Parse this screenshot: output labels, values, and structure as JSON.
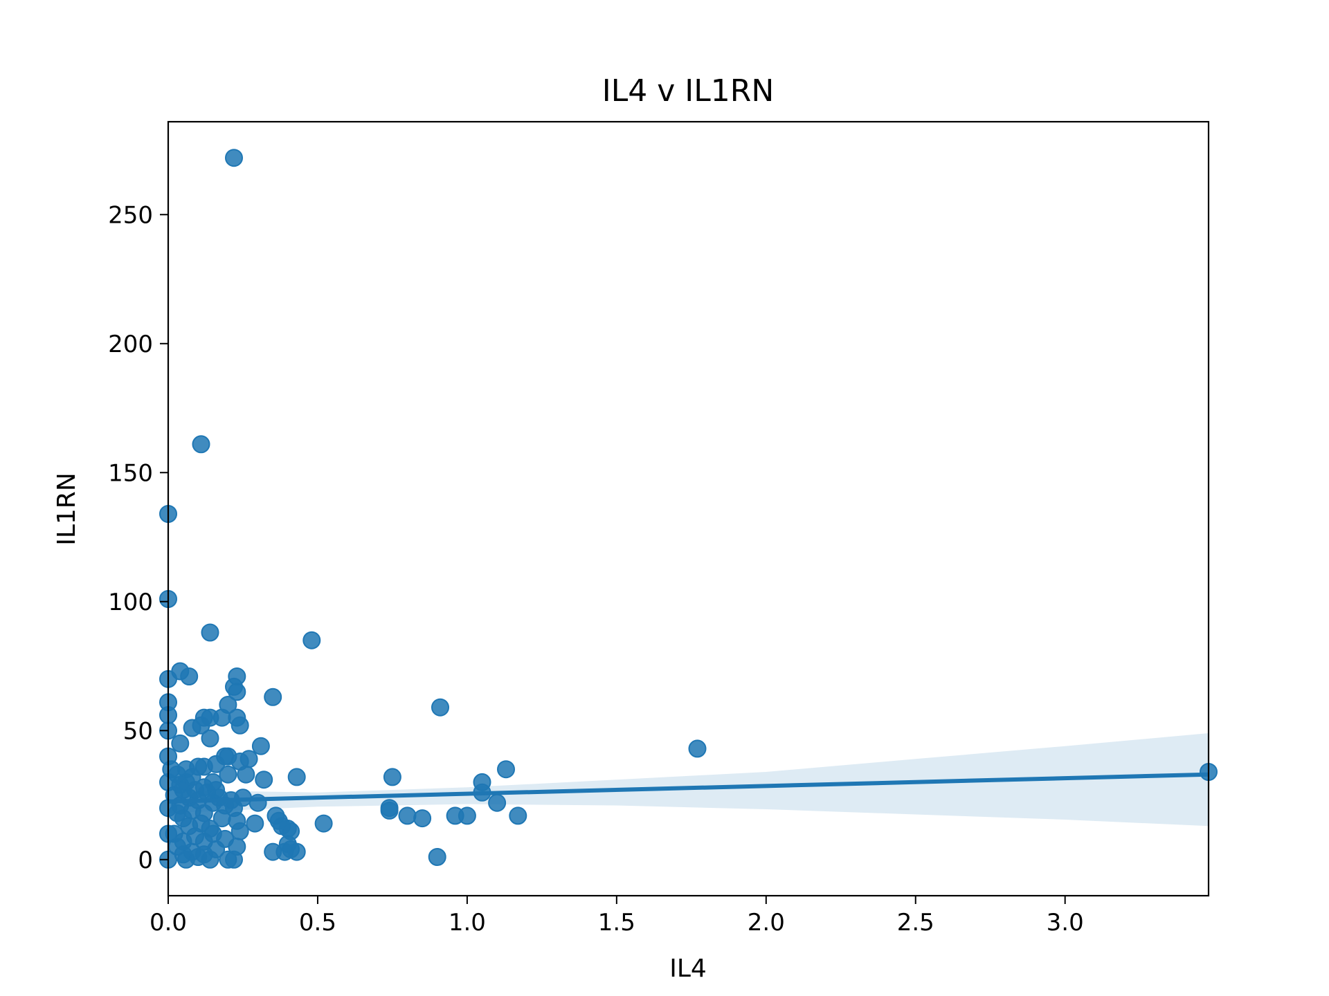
{
  "chart_data": {
    "type": "scatter",
    "title": "IL4 v IL1RN",
    "xlabel": "IL4",
    "ylabel": "IL1RN",
    "xlim": [
      0.0,
      3.48
    ],
    "ylim": [
      -14,
      286
    ],
    "xticks": [
      0.0,
      0.5,
      1.0,
      1.5,
      2.0,
      2.5,
      3.0
    ],
    "xtick_labels": [
      "0.0",
      "0.5",
      "1.0",
      "1.5",
      "2.0",
      "2.5",
      "3.0"
    ],
    "yticks": [
      0,
      50,
      100,
      150,
      200,
      250
    ],
    "ytick_labels": [
      "0",
      "50",
      "100",
      "150",
      "200",
      "250"
    ],
    "grid": false,
    "legend": "none",
    "colors": {
      "points": "#1f77b4",
      "regression_line": "#1f77b4",
      "confidence_band": "#1f77b4"
    },
    "series": [
      {
        "points": [
          [
            0.22,
            272
          ],
          [
            0.11,
            161
          ],
          [
            0.0,
            134
          ],
          [
            0.0,
            101
          ],
          [
            0.14,
            88
          ],
          [
            0.48,
            85
          ],
          [
            0.04,
            73
          ],
          [
            0.07,
            71
          ],
          [
            0.23,
            71
          ],
          [
            0.0,
            70
          ],
          [
            0.22,
            67
          ],
          [
            0.23,
            65
          ],
          [
            0.35,
            63
          ],
          [
            0.0,
            61
          ],
          [
            0.2,
            60
          ],
          [
            0.91,
            59
          ],
          [
            0.0,
            56
          ],
          [
            0.12,
            55
          ],
          [
            0.14,
            55
          ],
          [
            0.18,
            55
          ],
          [
            0.23,
            55
          ],
          [
            0.08,
            51
          ],
          [
            0.11,
            52
          ],
          [
            0.24,
            52
          ],
          [
            0.14,
            47
          ],
          [
            0.04,
            45
          ],
          [
            0.31,
            44
          ],
          [
            1.77,
            43
          ],
          [
            0.19,
            40
          ],
          [
            0.2,
            40
          ],
          [
            0.27,
            39
          ],
          [
            0.24,
            38
          ],
          [
            0.16,
            37
          ],
          [
            0.1,
            36
          ],
          [
            1.13,
            35
          ],
          [
            0.06,
            35
          ],
          [
            0.26,
            33
          ],
          [
            0.43,
            32
          ],
          [
            0.75,
            32
          ],
          [
            0.32,
            31
          ],
          [
            1.05,
            30
          ],
          [
            0.04,
            29
          ],
          [
            0.12,
            28
          ],
          [
            0.16,
            27
          ],
          [
            1.05,
            26
          ],
          [
            0.25,
            24
          ],
          [
            0.02,
            25
          ],
          [
            0.07,
            24
          ],
          [
            0.1,
            23
          ],
          [
            0.3,
            22
          ],
          [
            1.1,
            22
          ],
          [
            0.15,
            22
          ],
          [
            0.19,
            21
          ],
          [
            0.22,
            20
          ],
          [
            0.04,
            21
          ],
          [
            0.74,
            20
          ],
          [
            0.74,
            19
          ],
          [
            0.08,
            19
          ],
          [
            0.12,
            18
          ],
          [
            0.8,
            17
          ],
          [
            0.96,
            17
          ],
          [
            1.0,
            17
          ],
          [
            1.17,
            17
          ],
          [
            0.36,
            17
          ],
          [
            0.85,
            16
          ],
          [
            0.05,
            16
          ],
          [
            0.37,
            15
          ],
          [
            0.29,
            14
          ],
          [
            0.52,
            14
          ],
          [
            0.38,
            13
          ],
          [
            0.4,
            12
          ],
          [
            0.41,
            11
          ],
          [
            0.24,
            11
          ],
          [
            0.15,
            10
          ],
          [
            0.02,
            10
          ],
          [
            0.09,
            9
          ],
          [
            0.19,
            8
          ],
          [
            0.12,
            7
          ],
          [
            0.05,
            7
          ],
          [
            0.4,
            6
          ],
          [
            0.41,
            4
          ],
          [
            0.23,
            5
          ],
          [
            0.03,
            5
          ],
          [
            0.16,
            4
          ],
          [
            0.35,
            3
          ],
          [
            0.39,
            3
          ],
          [
            0.43,
            3
          ],
          [
            0.08,
            3
          ],
          [
            0.12,
            2
          ],
          [
            0.05,
            2
          ],
          [
            0.9,
            1
          ],
          [
            0.22,
            0
          ],
          [
            0.06,
            0
          ],
          [
            0.14,
            0
          ],
          [
            0.2,
            0
          ],
          [
            0.0,
            0
          ],
          [
            0.1,
            1
          ],
          [
            0.0,
            30
          ],
          [
            0.0,
            20
          ],
          [
            0.0,
            10
          ],
          [
            0.0,
            40
          ],
          [
            0.0,
            50
          ],
          [
            0.01,
            35
          ],
          [
            0.03,
            33
          ],
          [
            0.06,
            30
          ],
          [
            0.09,
            27
          ],
          [
            0.13,
            26
          ],
          [
            0.17,
            24
          ],
          [
            0.21,
            23
          ],
          [
            0.11,
            14
          ],
          [
            0.07,
            13
          ],
          [
            0.14,
            12
          ],
          [
            0.18,
            16
          ],
          [
            0.23,
            15
          ],
          [
            0.03,
            18
          ],
          [
            0.05,
            27
          ],
          [
            0.15,
            30
          ],
          [
            0.2,
            33
          ],
          [
            0.12,
            36
          ],
          [
            0.08,
            32
          ],
          [
            3.48,
            34
          ]
        ]
      }
    ],
    "regression": {
      "x0": 0.0,
      "y0": 22.5,
      "x1": 3.48,
      "y1": 33.0,
      "band": [
        [
          0.0,
          18,
          27
        ],
        [
          0.5,
          20.5,
          26
        ],
        [
          1.0,
          21.5,
          28
        ],
        [
          1.5,
          21,
          31
        ],
        [
          2.0,
          19.5,
          34
        ],
        [
          2.5,
          17.5,
          39
        ],
        [
          3.0,
          15.5,
          44
        ],
        [
          3.48,
          13,
          49
        ]
      ]
    }
  }
}
